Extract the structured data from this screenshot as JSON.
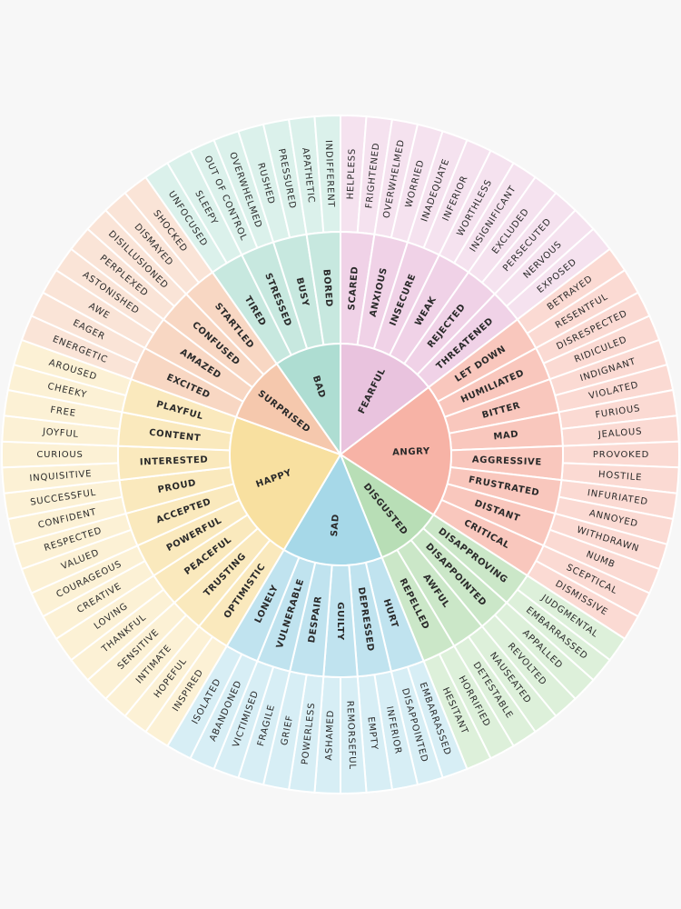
{
  "sectors": [
    {
      "label": "FEARFUL",
      "groups": [
        {
          "label": "SCARED",
          "items": [
            "HELPLESS",
            "FRIGHTENED"
          ]
        },
        {
          "label": "ANXIOUS",
          "items": [
            "OVERWHELMED",
            "WORRIED"
          ]
        },
        {
          "label": "INSECURE",
          "items": [
            "INADEQUATE",
            "INFERIOR"
          ]
        },
        {
          "label": "WEAK",
          "items": [
            "WORTHLESS",
            "INSIGNIFICANT"
          ]
        },
        {
          "label": "REJECTED",
          "items": [
            "EXCLUDED",
            "PERSECUTED"
          ]
        },
        {
          "label": "THREATENED",
          "items": [
            "NERVOUS",
            "EXPOSED"
          ]
        }
      ]
    },
    {
      "label": "ANGRY",
      "groups": [
        {
          "label": "LET DOWN",
          "items": [
            "BETRAYED",
            "RESENTFUL"
          ]
        },
        {
          "label": "HUMILIATED",
          "items": [
            "DISRESPECTED",
            "RIDICULED"
          ]
        },
        {
          "label": "BITTER",
          "items": [
            "INDIGNANT",
            "VIOLATED"
          ]
        },
        {
          "label": "MAD",
          "items": [
            "FURIOUS",
            "JEALOUS"
          ]
        },
        {
          "label": "AGGRESSIVE",
          "items": [
            "PROVOKED",
            "HOSTILE"
          ]
        },
        {
          "label": "FRUSTRATED",
          "items": [
            "INFURIATED",
            "ANNOYED"
          ]
        },
        {
          "label": "DISTANT",
          "items": [
            "WITHDRAWN",
            "NUMB"
          ]
        },
        {
          "label": "CRITICAL",
          "items": [
            "SCEPTICAL",
            "DISMISSIVE"
          ]
        }
      ]
    },
    {
      "label": "DISGUSTED",
      "groups": [
        {
          "label": "DISAPPROVING",
          "items": [
            "JUDGMENTAL",
            "EMBARRASSED"
          ]
        },
        {
          "label": "DISAPPOINTED",
          "items": [
            "APPALLED",
            "REVOLTED"
          ]
        },
        {
          "label": "AWFUL",
          "items": [
            "NAUSEATED",
            "DETESTABLE"
          ]
        },
        {
          "label": "REPELLED",
          "items": [
            "HORRIFIED",
            "HESITANT"
          ]
        }
      ]
    },
    {
      "label": "SAD",
      "groups": [
        {
          "label": "HURT",
          "items": [
            "EMBARRASSED",
            "DISAPPOINTED"
          ]
        },
        {
          "label": "DEPRESSED",
          "items": [
            "INFERIOR",
            "EMPTY"
          ]
        },
        {
          "label": "GUILTY",
          "items": [
            "REMORSEFUL",
            "ASHAMED"
          ]
        },
        {
          "label": "DESPAIR",
          "items": [
            "POWERLESS",
            "GRIEF"
          ]
        },
        {
          "label": "VULNERABLE",
          "items": [
            "FRAGILE",
            "VICTIMISED"
          ]
        },
        {
          "label": "LONELY",
          "items": [
            "ABANDONED",
            "ISOLATED"
          ]
        }
      ]
    },
    {
      "label": "HAPPY",
      "groups": [
        {
          "label": "OPTIMISTIC",
          "items": [
            "INSPIRED",
            "HOPEFUL"
          ]
        },
        {
          "label": "TRUSTING",
          "items": [
            "INTIMATE",
            "SENSITIVE"
          ]
        },
        {
          "label": "PEACEFUL",
          "items": [
            "THANKFUL",
            "LOVING"
          ]
        },
        {
          "label": "POWERFUL",
          "items": [
            "CREATIVE",
            "COURAGEOUS"
          ]
        },
        {
          "label": "ACCEPTED",
          "items": [
            "VALUED",
            "RESPECTED"
          ]
        },
        {
          "label": "PROUD",
          "items": [
            "CONFIDENT",
            "SUCCESSFUL"
          ]
        },
        {
          "label": "INTERESTED",
          "items": [
            "INQUISITIVE",
            "CURIOUS"
          ]
        },
        {
          "label": "CONTENT",
          "items": [
            "JOYFUL",
            "FREE"
          ]
        },
        {
          "label": "PLAYFUL",
          "items": [
            "CHEEKY",
            "AROUSED"
          ]
        }
      ]
    },
    {
      "label": "SURPRISED",
      "groups": [
        {
          "label": "EXCITED",
          "items": [
            "ENERGETIC",
            "EAGER"
          ]
        },
        {
          "label": "AMAZED",
          "items": [
            "AWE",
            "ASTONISHED"
          ]
        },
        {
          "label": "CONFUSED",
          "items": [
            "PERPLEXED",
            "DISILLUSIONED"
          ]
        },
        {
          "label": "STARTLED",
          "items": [
            "DISMAYED",
            "SHOCKED"
          ]
        }
      ]
    },
    {
      "label": "BAD",
      "groups": [
        {
          "label": "TIRED",
          "items": [
            "UNFOCUSED",
            "SLEEPY"
          ]
        },
        {
          "label": "STRESSED",
          "items": [
            "OUT OF CONTROL",
            "OVERWHELMED"
          ]
        },
        {
          "label": "BUSY",
          "items": [
            "RUSHED",
            "PRESSURED"
          ]
        },
        {
          "label": "BORED",
          "items": [
            "APATHETIC",
            "INDIFFERENT"
          ]
        }
      ]
    }
  ]
}
